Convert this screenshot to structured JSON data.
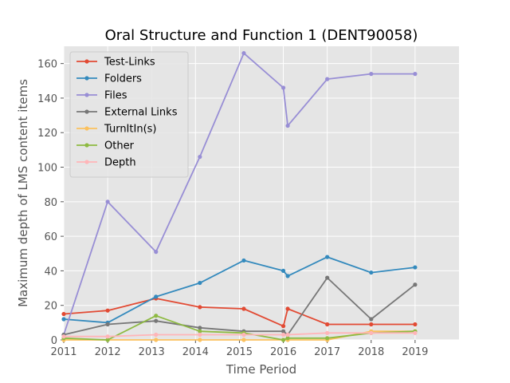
{
  "chart_data": {
    "type": "line",
    "title": "Oral Structure and Function 1 (DENT90058)",
    "xlabel": "Time Period",
    "ylabel": "Maximum depth of LMS content items",
    "xlim": [
      2011,
      2020
    ],
    "ylim": [
      0,
      170
    ],
    "xticks": [
      "2011",
      "2012",
      "2013",
      "2014",
      "2015",
      "2016",
      "2017",
      "2018",
      "2019"
    ],
    "yticks": [
      "0",
      "20",
      "40",
      "60",
      "80",
      "100",
      "120",
      "140",
      "160"
    ],
    "grid": true,
    "legend_position": "upper-left",
    "x": [
      2011.0,
      2012.0,
      2013.1,
      2014.1,
      2015.1,
      2016.0,
      2016.1,
      2017.0,
      2018.0,
      2019.0
    ],
    "series": [
      {
        "name": "Test-Links",
        "color": "#E24A33",
        "values": [
          15,
          17,
          24,
          19,
          18,
          8,
          18,
          9,
          9,
          9
        ]
      },
      {
        "name": "Folders",
        "color": "#348ABD",
        "values": [
          12,
          10,
          25,
          33,
          46,
          40,
          37,
          48,
          39,
          42
        ]
      },
      {
        "name": "Files",
        "color": "#988ED5",
        "values": [
          3,
          80,
          51,
          106,
          166,
          146,
          124,
          151,
          154,
          154
        ]
      },
      {
        "name": "External Links",
        "color": "#777777",
        "values": [
          3,
          9,
          11,
          7,
          5,
          5,
          3,
          36,
          12,
          32
        ]
      },
      {
        "name": "TurnItIn(s)",
        "color": "#FBC15E",
        "values": [
          0,
          0,
          0,
          0,
          0,
          0,
          0,
          0,
          5,
          5
        ]
      },
      {
        "name": "Other",
        "color": "#8EBA42",
        "values": [
          1,
          0,
          14,
          5,
          4,
          0,
          1,
          1,
          4,
          5
        ]
      },
      {
        "name": "Depth",
        "color": "#FFB5B8",
        "values": [
          2,
          2,
          3,
          3,
          3,
          3,
          3,
          4,
          4,
          4
        ]
      }
    ]
  }
}
